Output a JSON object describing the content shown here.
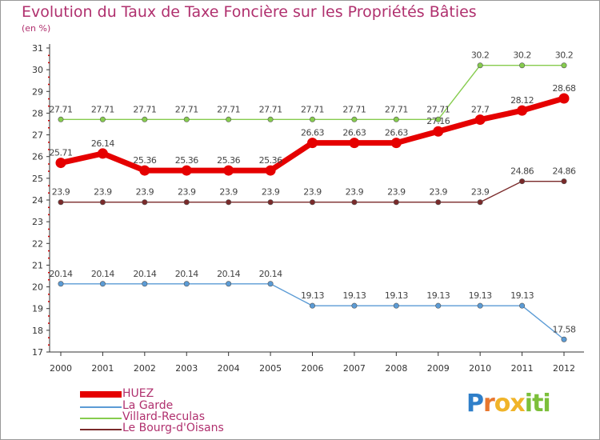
{
  "title": "Evolution du Taux de Taxe Foncière sur les Propriétés Bâties",
  "unit_label": "(en %)",
  "logo": {
    "text": "Proxiti",
    "letters": [
      "P",
      "r",
      "o",
      "x",
      "i",
      "t",
      "i"
    ],
    "colors": [
      "#2f7fc9",
      "#e8772e",
      "#f0b429",
      "#f0b429",
      "#7cbf3a",
      "#7cbf3a",
      "#7cbf3a"
    ]
  },
  "chart_data": {
    "type": "line",
    "title": "Evolution du Taux de Taxe Foncière sur les Propriétés Bâties",
    "ylabel": "(en %)",
    "xlabel": "",
    "x": [
      "2000",
      "2001",
      "2002",
      "2003",
      "2004",
      "2005",
      "2006",
      "2007",
      "2008",
      "2009",
      "2010",
      "2011",
      "2012"
    ],
    "ylim": [
      17,
      31
    ],
    "yticks": [
      "17",
      "18",
      "19",
      "20",
      "21",
      "22",
      "23",
      "24",
      "25",
      "26",
      "27",
      "28",
      "29",
      "30",
      "31"
    ],
    "grid": false,
    "legend_position": "bottom-left",
    "series": [
      {
        "name": "HUEZ",
        "color": "#e50000",
        "values": [
          25.71,
          26.14,
          25.36,
          25.36,
          25.36,
          25.36,
          26.63,
          26.63,
          26.63,
          27.16,
          27.7,
          28.12,
          28.68
        ],
        "labels": [
          "25.71",
          "26.14",
          "25.36",
          "25.36",
          "25.36",
          "25.36",
          "26.63",
          "26.63",
          "26.63",
          "27.16",
          "27.7",
          "28.12",
          "28.68"
        ]
      },
      {
        "name": "La Garde",
        "color": "#5b9bd5",
        "values": [
          20.14,
          20.14,
          20.14,
          20.14,
          20.14,
          20.14,
          19.13,
          19.13,
          19.13,
          19.13,
          19.13,
          19.13,
          17.58
        ],
        "labels": [
          "20.14",
          "20.14",
          "20.14",
          "20.14",
          "20.14",
          "20.14",
          "19.13",
          "19.13",
          "19.13",
          "19.13",
          "19.13",
          "19.13",
          "17.58"
        ]
      },
      {
        "name": "Villard-Reculas",
        "color": "#86cc4e",
        "values": [
          27.71,
          27.71,
          27.71,
          27.71,
          27.71,
          27.71,
          27.71,
          27.71,
          27.71,
          27.71,
          30.2,
          30.2,
          30.2
        ],
        "labels": [
          "27.71",
          "27.71",
          "27.71",
          "27.71",
          "27.71",
          "27.71",
          "27.71",
          "27.71",
          "27.71",
          "27.71",
          "30.2",
          "30.2",
          "30.2"
        ]
      },
      {
        "name": "Le Bourg-d'Oisans",
        "color": "#7a2a2a",
        "values": [
          23.9,
          23.9,
          23.9,
          23.9,
          23.9,
          23.9,
          23.9,
          23.9,
          23.9,
          23.9,
          23.9,
          24.86,
          24.86
        ],
        "labels": [
          "23.9",
          "23.9",
          "23.9",
          "23.9",
          "23.9",
          "23.9",
          "23.9",
          "23.9",
          "23.9",
          "23.9",
          "23.9",
          "24.86",
          "24.86"
        ]
      }
    ]
  }
}
